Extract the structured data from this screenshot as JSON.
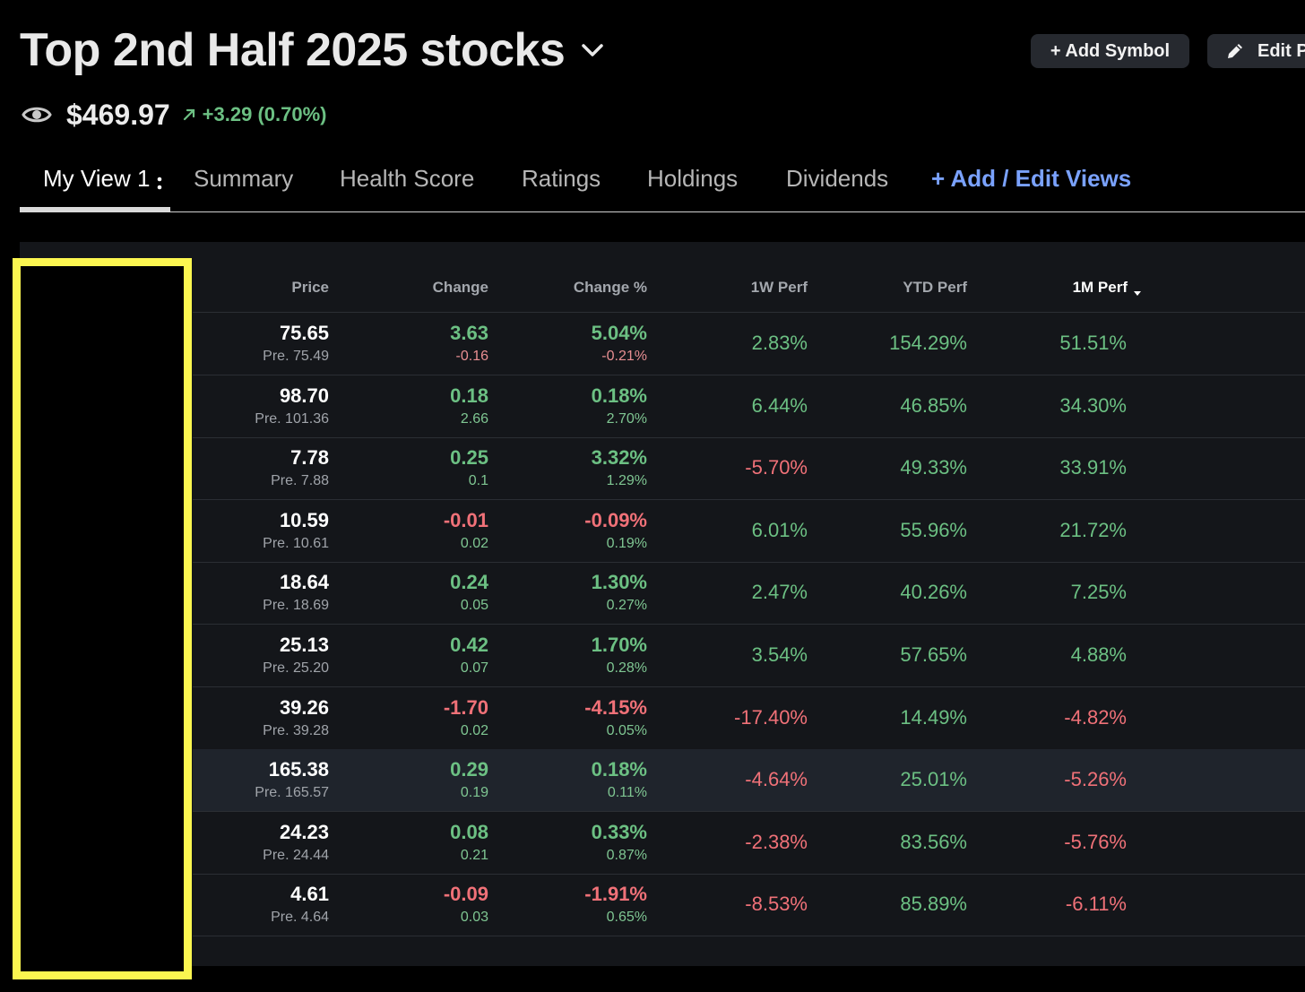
{
  "header": {
    "title": "Top 2nd Half 2025 stocks",
    "add_symbol_label": "+ Add Symbol",
    "edit_label": "Edit P",
    "total_value": "$469.97",
    "total_change": "+3.29 (0.70%)"
  },
  "tabs": [
    {
      "label": "My View 1",
      "active": true
    },
    {
      "label": "Summary"
    },
    {
      "label": "Health Score"
    },
    {
      "label": "Ratings"
    },
    {
      "label": "Holdings"
    },
    {
      "label": "Dividends"
    },
    {
      "label": "+ Add / Edit Views"
    }
  ],
  "table": {
    "columns": [
      "Price",
      "Change",
      "Change %",
      "1W Perf",
      "YTD Perf",
      "1M Perf"
    ],
    "sorted_column": "1M Perf",
    "rows": [
      {
        "price": "75.65",
        "pre": "Pre. 75.49",
        "change": "3.63",
        "change_sub": "-0.16",
        "change_pct": "5.04%",
        "change_pct_sub": "-0.21%",
        "w1": "2.83%",
        "ytd": "154.29%",
        "m1": "51.51%"
      },
      {
        "price": "98.70",
        "pre": "Pre. 101.36",
        "change": "0.18",
        "change_sub": "2.66",
        "change_pct": "0.18%",
        "change_pct_sub": "2.70%",
        "w1": "6.44%",
        "ytd": "46.85%",
        "m1": "34.30%"
      },
      {
        "price": "7.78",
        "pre": "Pre. 7.88",
        "change": "0.25",
        "change_sub": "0.1",
        "change_pct": "3.32%",
        "change_pct_sub": "1.29%",
        "w1": "-5.70%",
        "ytd": "49.33%",
        "m1": "33.91%"
      },
      {
        "price": "10.59",
        "pre": "Pre. 10.61",
        "change": "-0.01",
        "change_sub": "0.02",
        "change_pct": "-0.09%",
        "change_pct_sub": "0.19%",
        "w1": "6.01%",
        "ytd": "55.96%",
        "m1": "21.72%"
      },
      {
        "price": "18.64",
        "pre": "Pre. 18.69",
        "change": "0.24",
        "change_sub": "0.05",
        "change_pct": "1.30%",
        "change_pct_sub": "0.27%",
        "w1": "2.47%",
        "ytd": "40.26%",
        "m1": "7.25%"
      },
      {
        "price": "25.13",
        "pre": "Pre. 25.20",
        "change": "0.42",
        "change_sub": "0.07",
        "change_pct": "1.70%",
        "change_pct_sub": "0.28%",
        "w1": "3.54%",
        "ytd": "57.65%",
        "m1": "4.88%"
      },
      {
        "price": "39.26",
        "pre": "Pre. 39.28",
        "change": "-1.70",
        "change_sub": "0.02",
        "change_pct": "-4.15%",
        "change_pct_sub": "0.05%",
        "w1": "-17.40%",
        "ytd": "14.49%",
        "m1": "-4.82%"
      },
      {
        "price": "165.38",
        "pre": "Pre. 165.57",
        "change": "0.29",
        "change_sub": "0.19",
        "change_pct": "0.18%",
        "change_pct_sub": "0.11%",
        "w1": "-4.64%",
        "ytd": "25.01%",
        "m1": "-5.26%"
      },
      {
        "price": "24.23",
        "pre": "Pre. 24.44",
        "change": "0.08",
        "change_sub": "0.21",
        "change_pct": "0.33%",
        "change_pct_sub": "0.87%",
        "w1": "-2.38%",
        "ytd": "83.56%",
        "m1": "-5.76%"
      },
      {
        "price": "4.61",
        "pre": "Pre. 4.64",
        "change": "-0.09",
        "change_sub": "0.03",
        "change_pct": "-1.91%",
        "change_pct_sub": "0.65%",
        "w1": "-8.53%",
        "ytd": "85.89%",
        "m1": "-6.11%"
      }
    ]
  },
  "colors": {
    "positive": "#6cc083",
    "negative": "#f07178",
    "accent": "#7aa2ff",
    "redaction_border": "#fbf650"
  }
}
